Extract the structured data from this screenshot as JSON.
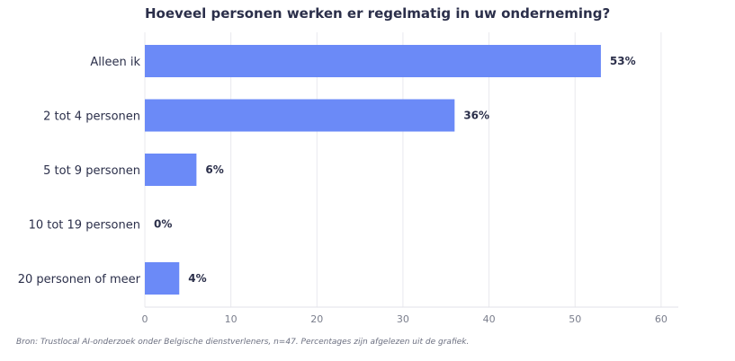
{
  "chart_data": {
    "type": "bar",
    "orientation": "horizontal",
    "title": "Hoeveel personen werken er regelmatig in uw onderneming?",
    "categories": [
      "Alleen ik",
      "2 tot 4 personen",
      "5 tot 9 personen",
      "10 tot 19 personen",
      "20 personen of meer"
    ],
    "values": [
      53,
      36,
      6,
      0,
      4
    ],
    "value_labels": [
      "53%",
      "36%",
      "6%",
      "0%",
      "4%"
    ],
    "xlim": [
      0,
      62
    ],
    "xticks": [
      0,
      10,
      20,
      30,
      40,
      50,
      60
    ],
    "xlabel": "",
    "ylabel": "",
    "grid": "vertical",
    "legend": "none",
    "bar_color": "#6b8af7",
    "label_color": "#2b2f4a",
    "tick_color": "#7a7e8c",
    "grid_color": "#e9e9ee"
  },
  "source_note": "Bron: Trustlocal AI-onderzoek onder Belgische dienstverleners, n=47. Percentages zijn afgelezen uit de grafiek."
}
